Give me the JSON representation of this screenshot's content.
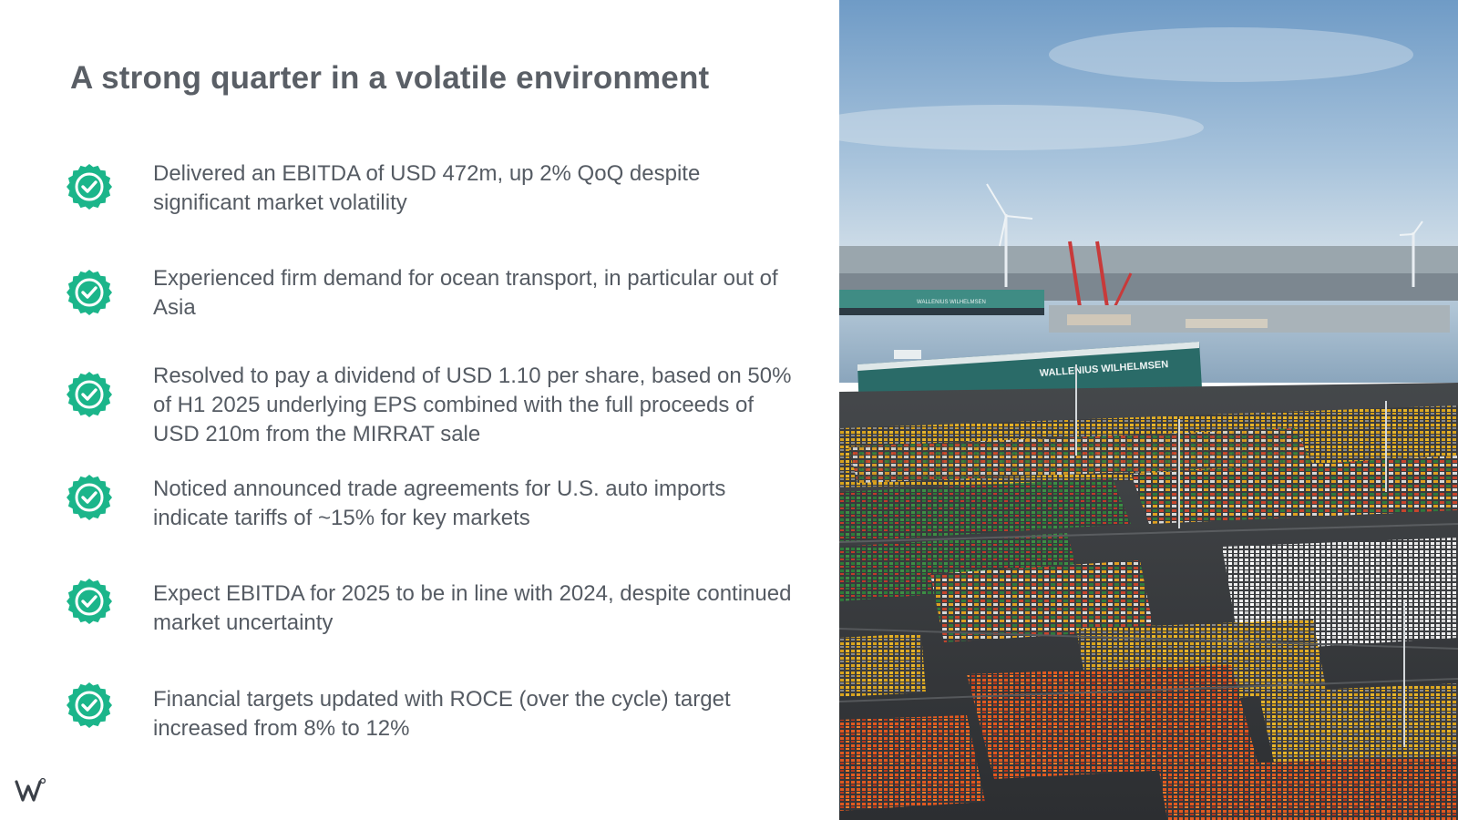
{
  "slide": {
    "title": "A strong quarter in a volatile environment",
    "bullets": [
      {
        "text": "Delivered an EBITDA of USD 472m, up 2% QoQ despite significant market volatility"
      },
      {
        "text": "Experienced firm demand for ocean transport, in particular out of Asia"
      },
      {
        "text": "Resolved to pay a dividend of USD 1.10 per share, based on 50% of H1 2025 underlying EPS combined with the full proceeds of USD 210m from the MIRRAT sale"
      },
      {
        "text": "Noticed announced trade agreements for U.S. auto imports indicate tariffs of ~15% for key markets"
      },
      {
        "text": "Expect EBITDA for 2025 to be in line with 2024, despite continued market uncertainty"
      },
      {
        "text": "Financial targets updated with ROCE (over the cycle) target increased from 8% to 12%"
      }
    ],
    "badge_icon": "check-badge-icon",
    "badge_color": "#1bb58a",
    "logo_icon": "company-logo-icon"
  },
  "photo": {
    "ship_name": "WALLENIUS WILHELMSEN",
    "distant_ship_name": "WALLENIUS WILHELMSEN"
  }
}
